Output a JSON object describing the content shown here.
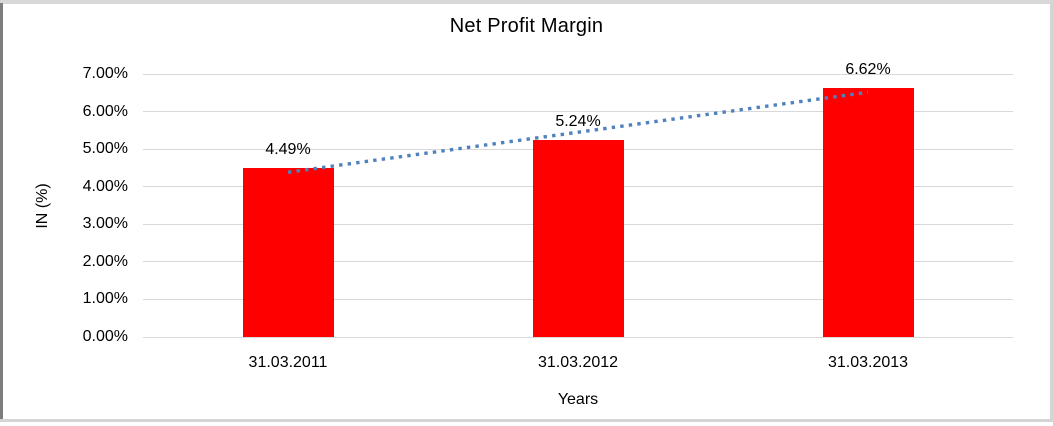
{
  "chart_data": {
    "type": "bar",
    "title": "Net Profit Margin",
    "categories": [
      "31.03.2011",
      "31.03.2012",
      "31.03.2013"
    ],
    "values": [
      4.49,
      5.24,
      6.62
    ],
    "data_labels": [
      "4.49%",
      "5.24%",
      "6.62%"
    ],
    "xlabel": "Years",
    "ylabel": "IN (%)",
    "ylim": [
      0,
      7
    ],
    "ytick_step": 1,
    "ytick_labels": [
      "0.00%",
      "1.00%",
      "2.00%",
      "3.00%",
      "4.00%",
      "5.00%",
      "6.00%",
      "7.00%"
    ],
    "grid": true,
    "legend": false,
    "bar_color": "#ff0000",
    "text_color": "#000000",
    "gridline_color": "#d9d9d9",
    "trendline": {
      "type": "linear",
      "style": "dotted",
      "color": "#4f81bd"
    }
  }
}
